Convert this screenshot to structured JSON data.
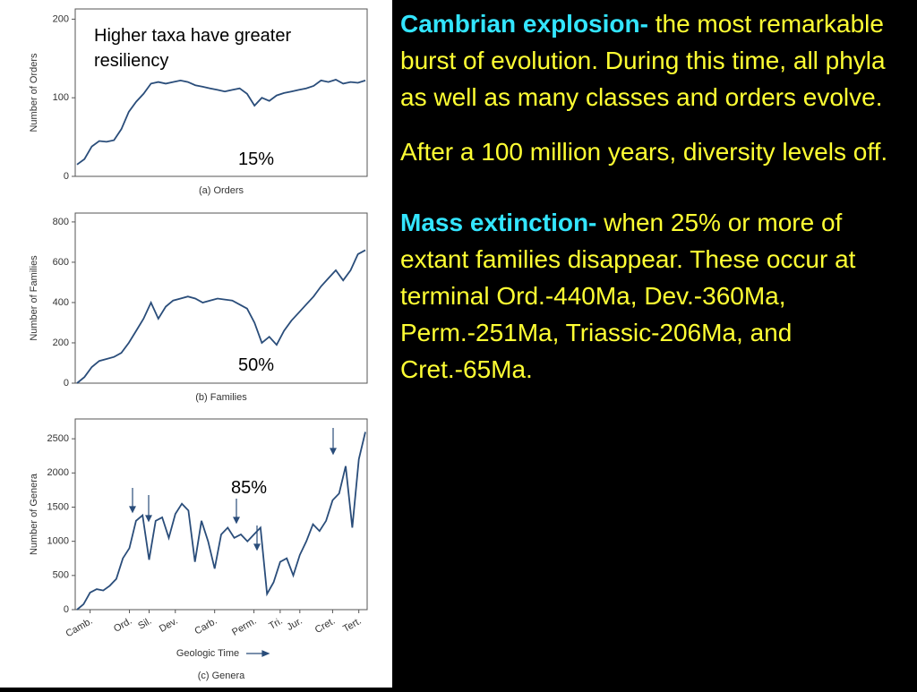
{
  "chart_data": [
    {
      "type": "line",
      "ylabel": "Number of Orders",
      "caption": "(a) Orders",
      "color": "#2a4d7a",
      "annotations": [
        "Higher taxa have greater resiliency",
        "15%"
      ],
      "ylim": [
        0,
        213
      ],
      "yticks": [
        0,
        100,
        200
      ],
      "categories": [
        null,
        null,
        null,
        null,
        null,
        null,
        null,
        null,
        null,
        null,
        null,
        null,
        null,
        null,
        null,
        null,
        null,
        null,
        null,
        null,
        null,
        null,
        null,
        null,
        null,
        null,
        null,
        null,
        null,
        null,
        null,
        null,
        null,
        null,
        null,
        null,
        null,
        null,
        null,
        null
      ],
      "values": [
        15,
        22,
        38,
        45,
        44,
        46,
        60,
        82,
        95,
        105,
        118,
        120,
        118,
        120,
        122,
        120,
        116,
        114,
        112,
        110,
        108,
        110,
        112,
        105,
        90,
        100,
        96,
        103,
        106,
        108,
        110,
        112,
        115,
        122,
        120,
        123,
        118,
        120,
        119,
        122
      ]
    },
    {
      "type": "line",
      "ylabel": "Number of Families",
      "caption": "(b) Families",
      "color": "#2a4d7a",
      "annotations": [
        "50%"
      ],
      "ylim": [
        0,
        844
      ],
      "yticks": [
        0,
        200,
        400,
        600,
        800
      ],
      "categories": [
        null,
        null,
        null,
        null,
        null,
        null,
        null,
        null,
        null,
        null,
        null,
        null,
        null,
        null,
        null,
        null,
        null,
        null,
        null,
        null,
        null,
        null,
        null,
        null,
        null,
        null,
        null,
        null,
        null,
        null,
        null,
        null,
        null,
        null,
        null,
        null,
        null,
        null,
        null,
        null
      ],
      "values": [
        0,
        30,
        80,
        110,
        120,
        130,
        150,
        200,
        260,
        320,
        400,
        320,
        380,
        410,
        420,
        430,
        420,
        400,
        410,
        420,
        415,
        410,
        390,
        370,
        300,
        200,
        230,
        190,
        260,
        310,
        350,
        390,
        430,
        480,
        520,
        560,
        510,
        560,
        640,
        660
      ]
    },
    {
      "type": "line",
      "ylabel": "Number of Genera",
      "xlabel": "Geologic Time",
      "caption": "(c) Genera",
      "color": "#2a4d7a",
      "annotations": [
        "85%"
      ],
      "ylim": [
        0,
        2790
      ],
      "yticks": [
        0,
        500,
        1000,
        1500,
        2000,
        2500
      ],
      "categories": [
        null,
        null,
        "Camb.",
        null,
        null,
        null,
        null,
        null,
        "Ord.",
        null,
        null,
        "Sil.",
        null,
        null,
        null,
        "Dev.",
        null,
        null,
        null,
        null,
        null,
        "Carb.",
        null,
        null,
        null,
        null,
        null,
        "Perm.",
        null,
        null,
        null,
        "Tri.",
        null,
        null,
        "Jur.",
        null,
        null,
        null,
        null,
        "Cret.",
        null,
        null,
        null,
        "Tert.",
        null
      ],
      "values": [
        0,
        80,
        250,
        300,
        280,
        350,
        450,
        750,
        900,
        1300,
        1380,
        730,
        1300,
        1350,
        1050,
        1400,
        1550,
        1450,
        700,
        1300,
        1000,
        600,
        1100,
        1200,
        1050,
        1100,
        1000,
        1100,
        1200,
        230,
        400,
        700,
        750,
        500,
        800,
        1000,
        1250,
        1150,
        1300,
        1600,
        1700,
        2100,
        1200,
        2200,
        2600
      ]
    }
  ],
  "text": {
    "paragraphs": [
      {
        "heading": "Cambrian explosion-",
        "body": " the most remarkable burst of evolution. During this time, all phyla as well as many classes and orders evolve."
      },
      {
        "body": "After a 100 million years, diversity levels off."
      },
      {
        "heading": "Mass extinction-",
        "body": " when 25% or more of extant families disappear. These occur at terminal Ord.-440Ma, Dev.-360Ma, Perm.-251Ma, Triassic-206Ma, and Cret.-65Ma."
      }
    ]
  }
}
